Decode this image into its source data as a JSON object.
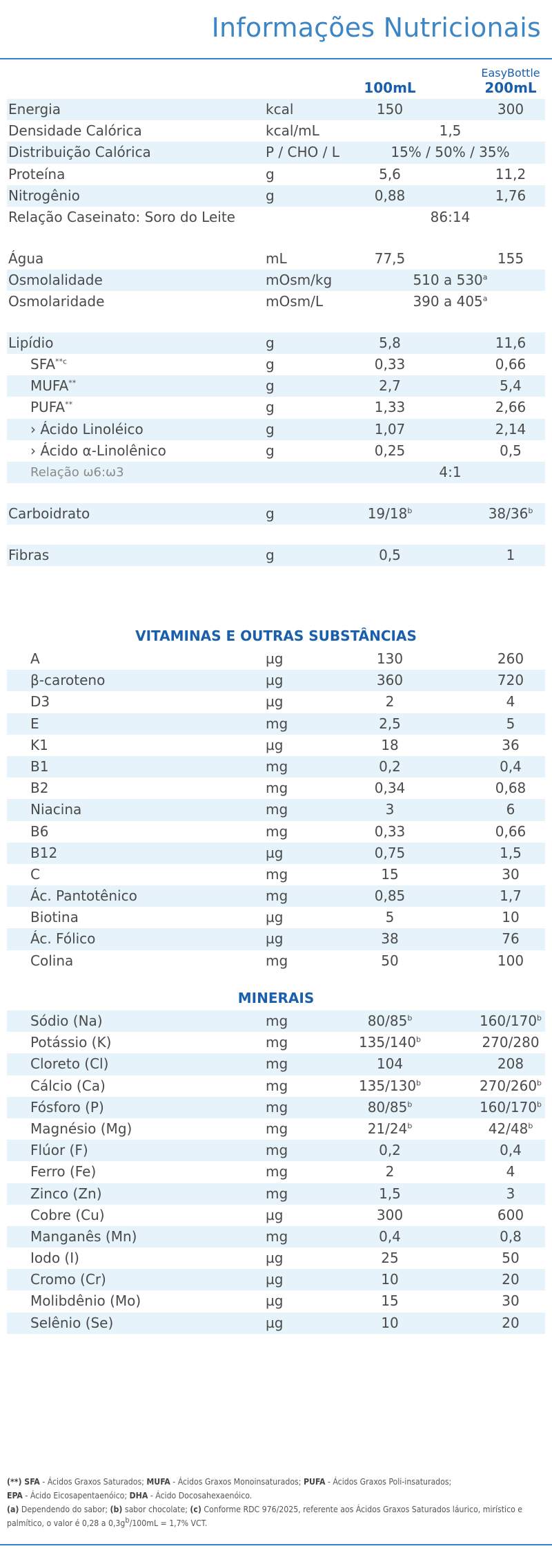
{
  "title": "Informações Nutricionais",
  "headers": {
    "col1": "100mL",
    "col2_top": "EasyBottle",
    "col2": "200mL"
  },
  "main_rows": [
    {
      "name": "Energia",
      "unit": "kcal",
      "v1": "150",
      "v2": "300"
    },
    {
      "name": "Densidade Calórica",
      "unit": "kcal/mL",
      "span": "1,5"
    },
    {
      "name": "Distribuição Calórica",
      "unit": "P / CHO / L",
      "span": "15% / 50% / 35%"
    },
    {
      "name": "Proteína",
      "unit": "g",
      "v1": "5,6",
      "v2": "11,2"
    },
    {
      "name": "Nitrogênio",
      "unit": "g",
      "v1": "0,88",
      "v2": "1,76"
    },
    {
      "name": "Relação Caseinato: Soro do Leite",
      "unit": "",
      "span": "86:14"
    },
    {
      "name": "Água",
      "unit": "mL",
      "v1": "77,5",
      "v2": "155"
    },
    {
      "name": "Osmolalidade",
      "unit": "mOsm/kg",
      "span": "510 a 530",
      "span_sup": "a"
    },
    {
      "name": "Osmolaridade",
      "unit": "mOsm/L",
      "span": "390 a 405",
      "span_sup": "a"
    },
    {
      "name": "Lipídio",
      "unit": "g",
      "v1": "5,8",
      "v2": "11,6"
    },
    {
      "name": "SFA",
      "name_sup": "**c",
      "unit": "g",
      "v1": "0,33",
      "v2": "0,66"
    },
    {
      "name": "MUFA",
      "name_sup": "**",
      "unit": "g",
      "v1": "2,7",
      "v2": "5,4"
    },
    {
      "name": "PUFA",
      "name_sup": "**",
      "unit": "g",
      "v1": "1,33",
      "v2": "2,66"
    },
    {
      "name": "› Ácido Linoléico",
      "unit": "g",
      "v1": "1,07",
      "v2": "2,14"
    },
    {
      "name": "› Ácido α-Linolênico",
      "unit": "g",
      "v1": "0,25",
      "v2": "0,5"
    },
    {
      "name": "Relação ω6:ω3",
      "unit": "",
      "span": "4:1"
    },
    {
      "name": "Carboidrato",
      "unit": "g",
      "v1": "19/18",
      "v1_sup": "b",
      "v2": "38/36",
      "v2_sup": "b"
    },
    {
      "name": "Fibras",
      "unit": "g",
      "v1": "0,5",
      "v2": "1"
    }
  ],
  "vitamins": {
    "title": "VITAMINAS E OUTRAS SUBSTÂNCIAS",
    "rows": [
      {
        "name": "A",
        "unit": "µg",
        "v1": "130",
        "v2": "260"
      },
      {
        "name": "β-caroteno",
        "unit": "µg",
        "v1": "360",
        "v2": "720"
      },
      {
        "name": "D3",
        "unit": "µg",
        "v1": "2",
        "v2": "4"
      },
      {
        "name": "E",
        "unit": "mg",
        "v1": "2,5",
        "v2": "5"
      },
      {
        "name": "K1",
        "unit": "µg",
        "v1": "18",
        "v2": "36"
      },
      {
        "name": "B1",
        "unit": "mg",
        "v1": "0,2",
        "v2": "0,4"
      },
      {
        "name": "B2",
        "unit": "mg",
        "v1": "0,34",
        "v2": "0,68"
      },
      {
        "name": "Niacina",
        "unit": "mg",
        "v1": "3",
        "v2": "6"
      },
      {
        "name": "B6",
        "unit": "mg",
        "v1": "0,33",
        "v2": "0,66"
      },
      {
        "name": "B12",
        "unit": "µg",
        "v1": "0,75",
        "v2": "1,5"
      },
      {
        "name": "C",
        "unit": "mg",
        "v1": "15",
        "v2": "30"
      },
      {
        "name": "Ác. Pantotênico",
        "unit": "mg",
        "v1": "0,85",
        "v2": "1,7"
      },
      {
        "name": "Biotina",
        "unit": "µg",
        "v1": "5",
        "v2": "10"
      },
      {
        "name": "Ác. Fólico",
        "unit": "µg",
        "v1": "38",
        "v2": "76"
      },
      {
        "name": "Colina",
        "unit": "mg",
        "v1": "50",
        "v2": "100"
      }
    ]
  },
  "minerals": {
    "title": "MINERAIS",
    "rows": [
      {
        "name": "Sódio (Na)",
        "unit": "mg",
        "v1": "80/85",
        "v1_sup": "b",
        "v2": "160/170",
        "v2_sup": "b"
      },
      {
        "name": "Potássio (K)",
        "unit": "mg",
        "v1": "135/140",
        "v1_sup": "b",
        "v2": "270/280"
      },
      {
        "name": "Cloreto (Cl)",
        "unit": "mg",
        "v1": "104",
        "v2": "208"
      },
      {
        "name": "Cálcio (Ca)",
        "unit": "mg",
        "v1": "135/130",
        "v1_sup": "b",
        "v2": "270/260",
        "v2_sup": "b"
      },
      {
        "name": "Fósforo (P)",
        "unit": "mg",
        "v1": "80/85",
        "v1_sup": "b",
        "v2": "160/170",
        "v2_sup": "b"
      },
      {
        "name": "Magnésio (Mg)",
        "unit": "mg",
        "v1": "21/24",
        "v1_sup": "b",
        "v2": "42/48",
        "v2_sup": "b"
      },
      {
        "name": "Flúor (F)",
        "unit": "mg",
        "v1": "0,2",
        "v2": "0,4"
      },
      {
        "name": "Ferro (Fe)",
        "unit": "mg",
        "v1": "2",
        "v2": "4"
      },
      {
        "name": "Zinco (Zn)",
        "unit": "mg",
        "v1": "1,5",
        "v2": "3"
      },
      {
        "name": "Cobre (Cu)",
        "unit": "µg",
        "v1": "300",
        "v2": "600"
      },
      {
        "name": "Manganês (Mn)",
        "unit": "mg",
        "v1": "0,4",
        "v2": "0,8"
      },
      {
        "name": "Iodo (I)",
        "unit": "µg",
        "v1": "25",
        "v2": "50"
      },
      {
        "name": "Cromo (Cr)",
        "unit": "µg",
        "v1": "10",
        "v2": "20"
      },
      {
        "name": "Molibdênio (Mo)",
        "unit": "µg",
        "v1": "15",
        "v2": "30"
      },
      {
        "name": "Selênio (Se)",
        "unit": "µg",
        "v1": "10",
        "v2": "20"
      }
    ]
  },
  "footnotes": {
    "l1_k1": "(**) SFA",
    "l1_t1": " - Ácidos Graxos Saturados; ",
    "l1_k2": "MUFA",
    "l1_t2": " - Ácidos Graxos Monoinsaturados; ",
    "l1_k3": "PUFA",
    "l1_t3": " - Ácidos Graxos Poli-insaturados;",
    "l2_k1": "EPA",
    "l2_t1": " - Ácido Eicosapentaenóico; ",
    "l2_k2": "DHA",
    "l2_t2": " - Ácido Docosahexaenóico.",
    "l3_k1": "(a)",
    "l3_t1": " Dependendo do sabor; ",
    "l3_k2": "(b)",
    "l3_t2": " sabor chocolate; ",
    "l3_k3": "(c)",
    "l3_t3": " Conforme RDC 976/2025, referente aos Ácidos Graxos Saturados láurico, mirístico e palmítico, o valor é 0,28 a 0,3g",
    "l3_sup": "b",
    "l3_t4": "/100mL = 1,7% VCT."
  }
}
